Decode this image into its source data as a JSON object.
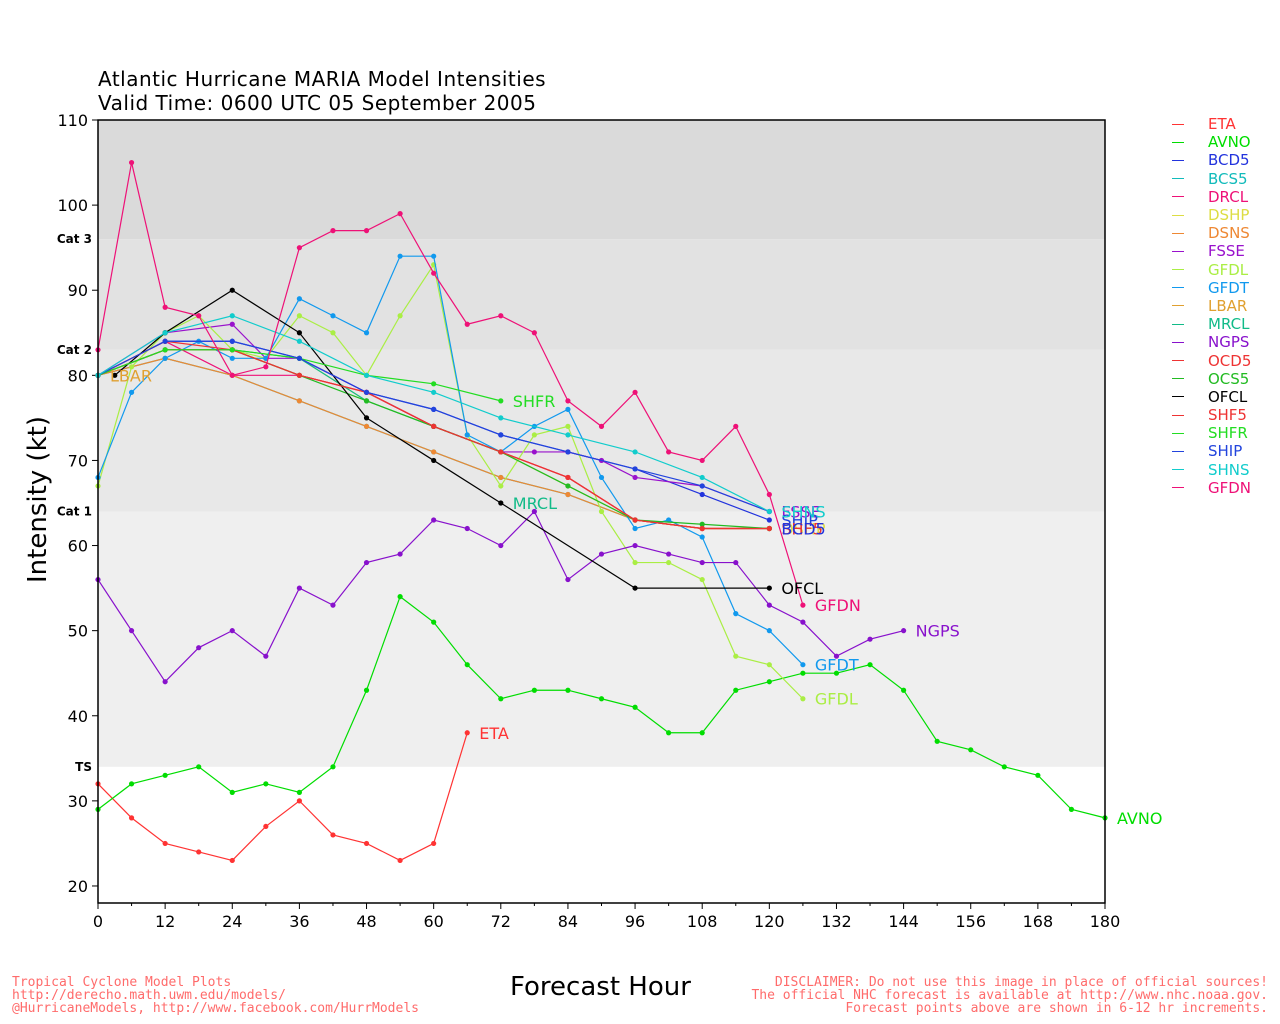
{
  "header": {
    "title_line1": "Atlantic Hurricane MARIA Model Intensities",
    "title_line2": "Valid Time: 0600 UTC 05 September 2005"
  },
  "footer": {
    "left": "Tropical Cyclone Model Plots\nhttp://derecho.math.uwm.edu/models/\n@HurricaneModels, http://www.facebook.com/HurrModels",
    "right": "DISCLAIMER: Do not use this image in place of official sources!\nThe official NHC forecast is available at http://www.nhc.noaa.gov.\nForecast points above are shown in 6-12 hr increments."
  },
  "chart_data": {
    "type": "line",
    "xlabel": "Forecast Hour",
    "ylabel": "Intensity (kt)",
    "xlim": [
      0,
      180
    ],
    "ylim": [
      18,
      110
    ],
    "xticks": [
      0,
      12,
      24,
      36,
      48,
      60,
      72,
      84,
      96,
      108,
      120,
      132,
      144,
      156,
      168,
      180
    ],
    "yticks": [
      20,
      30,
      40,
      50,
      60,
      70,
      80,
      90,
      100,
      110
    ],
    "legend_position": "right",
    "category_bands": [
      {
        "label": "TS",
        "from": 34,
        "to": 64,
        "color": "#efefef"
      },
      {
        "label": "Cat 1",
        "from": 64,
        "to": 83,
        "color": "#e8e8e8"
      },
      {
        "label": "Cat 2",
        "from": 83,
        "to": 96,
        "color": "#e2e2e2"
      },
      {
        "label": "Cat 3",
        "from": 96,
        "to": 110,
        "color": "#dadada"
      }
    ],
    "series": [
      {
        "name": "ETA",
        "color": "#ff3333",
        "label": "ETA",
        "x": [
          0,
          6,
          12,
          18,
          24,
          30,
          36,
          42,
          48,
          54,
          60,
          66
        ],
        "y": [
          32,
          28,
          25,
          24,
          23,
          27,
          30,
          26,
          25,
          23,
          25,
          38
        ]
      },
      {
        "name": "AVNO",
        "color": "#00dd00",
        "label": "AVNO",
        "x": [
          0,
          6,
          12,
          18,
          24,
          30,
          36,
          42,
          48,
          54,
          60,
          66,
          72,
          78,
          84,
          90,
          96,
          102,
          108,
          114,
          120,
          126,
          132,
          138,
          144,
          150,
          156,
          162,
          168,
          174,
          180
        ],
        "y": [
          29,
          32,
          33,
          34,
          31,
          32,
          31,
          34,
          43,
          54,
          51,
          46,
          42,
          43,
          43,
          42,
          41,
          38,
          38,
          43,
          44,
          45,
          45,
          46,
          43,
          37,
          36,
          34,
          33,
          29,
          28
        ]
      },
      {
        "name": "BCD5",
        "color": "#2233dd",
        "label": "",
        "x": [
          0,
          12,
          24,
          36,
          48,
          60,
          72,
          84,
          96,
          108,
          120
        ],
        "y": [
          80,
          84,
          84,
          82,
          78,
          76,
          73,
          71,
          69,
          66,
          63
        ]
      },
      {
        "name": "BCS5",
        "color": "#11bbbb",
        "label": "",
        "x": [
          0,
          12,
          24,
          36,
          48,
          60,
          72,
          84,
          96,
          108,
          120
        ],
        "y": [
          80,
          82,
          80,
          77,
          74,
          71,
          68,
          66,
          63,
          62,
          62
        ]
      },
      {
        "name": "DRCL",
        "color": "#ee1177",
        "label": "",
        "x": [
          0,
          12,
          24,
          36,
          48,
          60,
          72,
          84,
          96,
          108,
          120
        ],
        "y": [
          80,
          84,
          80,
          80,
          78,
          74,
          71,
          68,
          63,
          62,
          62
        ]
      },
      {
        "name": "DSHP",
        "color": "#dddd44",
        "label": "",
        "x": [
          0,
          12,
          24,
          36,
          48,
          60,
          72,
          84,
          96,
          108,
          120
        ],
        "y": [
          80,
          83,
          83,
          82,
          77,
          74,
          71,
          67,
          63,
          62,
          62
        ]
      },
      {
        "name": "DSNS",
        "color": "#ee8833",
        "label": "",
        "x": [
          0,
          12,
          24,
          36,
          48,
          60,
          72,
          84,
          96,
          108,
          120
        ],
        "y": [
          80,
          82,
          80,
          77,
          74,
          71,
          68,
          66,
          63,
          62,
          62
        ]
      },
      {
        "name": "FSSE",
        "color": "#9911cc",
        "label": "FSSE",
        "x": [
          0,
          12,
          24,
          30,
          36,
          48,
          60,
          72,
          78,
          84,
          90,
          96,
          108,
          120
        ],
        "y": [
          80,
          85,
          86,
          82,
          82,
          78,
          74,
          71,
          71,
          71,
          70,
          68,
          67,
          64
        ]
      },
      {
        "name": "GFDL",
        "color": "#aaee44",
        "label": "GFDL",
        "x": [
          0,
          6,
          12,
          18,
          24,
          30,
          36,
          42,
          48,
          54,
          60,
          66,
          72,
          78,
          84,
          90,
          96,
          102,
          108,
          114,
          120,
          126
        ],
        "y": [
          67,
          81,
          85,
          87,
          83,
          82,
          87,
          85,
          80,
          87,
          93,
          73,
          67,
          73,
          74,
          64,
          58,
          58,
          56,
          47,
          46,
          42
        ]
      },
      {
        "name": "GFDT",
        "color": "#1199ee",
        "label": "GFDT",
        "x": [
          0,
          6,
          12,
          18,
          24,
          30,
          36,
          42,
          48,
          54,
          60,
          66,
          72,
          78,
          84,
          90,
          96,
          102,
          108,
          114,
          120,
          126
        ],
        "y": [
          68,
          78,
          82,
          84,
          82,
          82,
          89,
          87,
          85,
          94,
          94,
          73,
          71,
          74,
          76,
          68,
          62,
          63,
          61,
          52,
          50,
          46
        ]
      },
      {
        "name": "LBAR",
        "color": "#e0a030",
        "label": "LBAR",
        "x": [
          0
        ],
        "y": [
          80
        ]
      },
      {
        "name": "MRCL",
        "color": "#11bb88",
        "label": "MRCL",
        "x": [
          0,
          12,
          24,
          36,
          48,
          60,
          72
        ],
        "y": [
          80,
          83,
          83,
          82,
          77,
          74,
          71
        ]
      },
      {
        "name": "NGPS",
        "color": "#8811cc",
        "label": "NGPS",
        "x": [
          0,
          6,
          12,
          18,
          24,
          30,
          36,
          42,
          48,
          54,
          60,
          66,
          72,
          78,
          84,
          90,
          96,
          102,
          108,
          114,
          120,
          126,
          132,
          138,
          144
        ],
        "y": [
          56,
          50,
          44,
          48,
          50,
          47,
          55,
          53,
          58,
          59,
          63,
          62,
          60,
          64,
          56,
          59,
          60,
          59,
          58,
          58,
          53,
          51,
          47,
          49,
          50
        ]
      },
      {
        "name": "OCD5",
        "color": "#ee3333",
        "label": "",
        "x": [
          0,
          12,
          24,
          36,
          48,
          60,
          72,
          84,
          96,
          108,
          120
        ],
        "y": [
          80,
          84,
          83,
          80,
          78,
          74,
          71,
          68,
          63,
          62,
          62
        ]
      },
      {
        "name": "OCS5",
        "color": "#22bb22",
        "label": "",
        "x": [
          0,
          12,
          24,
          36,
          48,
          60,
          72,
          84,
          96,
          108,
          120
        ],
        "y": [
          80,
          83,
          83,
          80,
          77,
          74,
          71,
          67,
          63,
          62.5,
          62
        ]
      },
      {
        "name": "OFCL",
        "color": "#000000",
        "label": "OFCL",
        "x": [
          3,
          12,
          24,
          36,
          48,
          60,
          72,
          96,
          120
        ],
        "y": [
          80,
          85,
          90,
          85,
          75,
          70,
          65,
          55,
          55
        ]
      },
      {
        "name": "SHF5",
        "color": "#ee3333",
        "label": "",
        "x": [
          0,
          12,
          24,
          36,
          48,
          60,
          72,
          84,
          96,
          108,
          120
        ],
        "y": [
          80,
          83,
          83,
          80,
          78,
          74,
          71,
          68,
          63,
          62,
          62
        ]
      },
      {
        "name": "SHFR",
        "color": "#22dd22",
        "label": "SHFR",
        "x": [
          0,
          12,
          24,
          36,
          48,
          60,
          72
        ],
        "y": [
          80,
          83,
          83,
          82,
          80,
          79,
          77
        ]
      },
      {
        "name": "SHIP",
        "color": "#2244dd",
        "label": "",
        "x": [
          0,
          12,
          24,
          36,
          48,
          60,
          72,
          84,
          96,
          108,
          120
        ],
        "y": [
          80,
          84,
          84,
          82,
          78,
          76,
          73,
          71,
          69,
          67,
          64
        ]
      },
      {
        "name": "SHNS",
        "color": "#11cccc",
        "label": "",
        "x": [
          0,
          12,
          24,
          36,
          48,
          60,
          72,
          84,
          96,
          108,
          120
        ],
        "y": [
          80,
          85,
          87,
          84,
          80,
          78,
          75,
          73,
          71,
          68,
          64
        ]
      },
      {
        "name": "GFDN",
        "color": "#ee1177",
        "label": "GFDN",
        "x": [
          0,
          6,
          12,
          18,
          24,
          30,
          36,
          42,
          48,
          54,
          60,
          66,
          72,
          78,
          84,
          90,
          96,
          102,
          108,
          114,
          120,
          126
        ],
        "y": [
          83,
          105,
          88,
          87,
          80,
          81,
          95,
          97,
          97,
          99,
          92,
          86,
          87,
          85,
          77,
          74,
          78,
          71,
          70,
          74,
          66,
          53
        ]
      }
    ],
    "end_labels": [
      {
        "text": "ETA",
        "color": "#ff3333",
        "x": 66,
        "y": 38
      },
      {
        "text": "AVNO",
        "color": "#00dd00",
        "x": 180,
        "y": 28
      },
      {
        "text": "SHFR",
        "color": "#22dd22",
        "x": 72,
        "y": 77
      },
      {
        "text": "MRCL",
        "color": "#11bb88",
        "x": 72,
        "y": 65
      },
      {
        "text": "LBAR",
        "color": "#e0a030",
        "x": 0,
        "y": 80
      },
      {
        "text": "NGPS",
        "color": "#8811cc",
        "x": 144,
        "y": 50
      },
      {
        "text": "GFDN",
        "color": "#ee1177",
        "x": 126,
        "y": 53
      },
      {
        "text": "GFDT",
        "color": "#1199ee",
        "x": 126,
        "y": 46
      },
      {
        "text": "GFDL",
        "color": "#aaee44",
        "x": 126,
        "y": 42
      },
      {
        "text": "OFCL",
        "color": "#000000",
        "x": 120,
        "y": 55
      },
      {
        "text": "FSSE",
        "color": "#9911cc",
        "x": 120,
        "y": 64
      },
      {
        "text": "SHIP",
        "color": "#2244dd",
        "x": 120,
        "y": 63
      },
      {
        "text": "SHNS",
        "color": "#11cccc",
        "x": 120,
        "y": 64
      },
      {
        "text": "DSHP",
        "color": "#dddd44",
        "x": 120,
        "y": 62
      },
      {
        "text": "SHF5",
        "color": "#ee3333",
        "x": 120,
        "y": 62
      },
      {
        "text": "BCD5",
        "color": "#2233dd",
        "x": 120,
        "y": 62
      }
    ]
  }
}
